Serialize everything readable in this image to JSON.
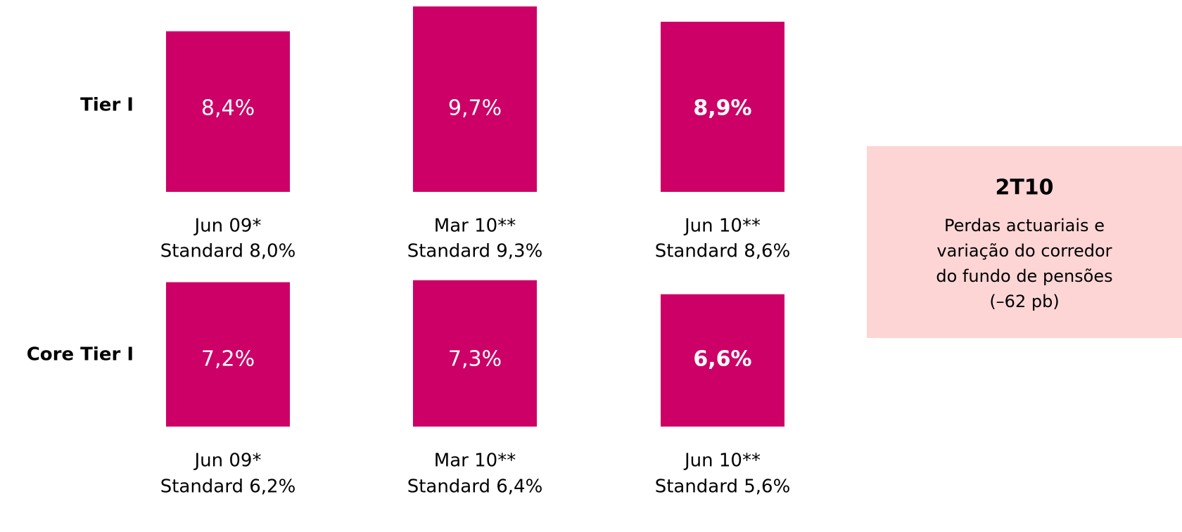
{
  "chart_data": [
    {
      "type": "bar",
      "title": "Tier I",
      "color": "#cc0066",
      "categories": [
        "Jun 09*",
        "Mar 10**",
        "Jun 10**"
      ],
      "sublabels": [
        "Standard 8,0%",
        "Standard 9,3%",
        "Standard 8,6%"
      ],
      "values": [
        8.4,
        9.7,
        8.9
      ],
      "value_labels": [
        "8,4%",
        "9,7%",
        "8,9%"
      ],
      "ylim": [
        0,
        10
      ]
    },
    {
      "type": "bar",
      "title": "Core Tier I",
      "color": "#cc0066",
      "categories": [
        "Jun 09*",
        "Mar 10**",
        "Jun 10**"
      ],
      "sublabels": [
        "Standard 6,2%",
        "Standard 6,4%",
        "Standard 5,6%"
      ],
      "values": [
        7.2,
        7.3,
        6.6
      ],
      "value_labels": [
        "7,2%",
        "7,3%",
        "6,6%"
      ],
      "ylim": [
        0,
        7.5
      ]
    }
  ],
  "callout": {
    "title": "2T10",
    "lines": [
      "Perdas actuariais e",
      "variação do corredor",
      "do fundo de pensões",
      "(–62 pb)"
    ]
  }
}
